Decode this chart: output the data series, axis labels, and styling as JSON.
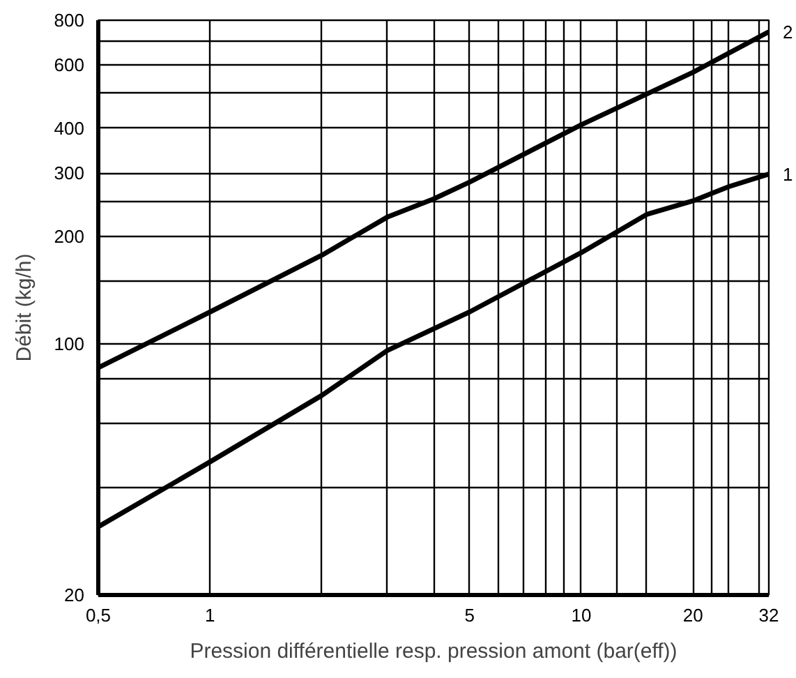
{
  "chart_data": {
    "type": "line",
    "xlabel": "Pression différentielle resp. pression amont (bar(eff))",
    "ylabel": "Débit (kg/h)",
    "log": "xy",
    "grid": true,
    "legend": false,
    "marker": "none",
    "line_style": "solid",
    "xlim": [
      0.5,
      32
    ],
    "ylim": [
      20,
      800
    ],
    "xticks": [
      {
        "value": 0.5,
        "label": "0,5"
      },
      1,
      {
        "value": 2,
        "label": null
      },
      {
        "value": 3,
        "label": null
      },
      {
        "value": 4,
        "label": null
      },
      5,
      {
        "value": 6,
        "label": null
      },
      {
        "value": 7,
        "label": null
      },
      {
        "value": 8,
        "label": null
      },
      {
        "value": 9,
        "label": null
      },
      10,
      {
        "value": 12.5,
        "label": null
      },
      {
        "value": 15,
        "label": null
      },
      20,
      {
        "value": 22.5,
        "label": null
      },
      {
        "value": 25,
        "label": null
      },
      {
        "value": 30,
        "label": null
      },
      32
    ],
    "yticks": [
      20,
      {
        "value": 40,
        "label": null
      },
      {
        "value": 60,
        "label": null
      },
      {
        "value": 80,
        "label": null
      },
      100,
      {
        "value": 150,
        "label": null
      },
      200,
      {
        "value": 250,
        "label": null
      },
      300,
      400,
      {
        "value": 500,
        "label": null
      },
      600,
      {
        "value": 700,
        "label": null
      },
      800
    ],
    "series": [
      {
        "name": "2",
        "color": "#000000",
        "x": [
          0.5,
          1,
          2,
          3,
          4,
          5,
          10,
          20,
          32
        ],
        "values": [
          86,
          123,
          177,
          226,
          254,
          283,
          409,
          573,
          743
        ]
      },
      {
        "name": "1",
        "color": "#000000",
        "x": [
          0.5,
          1,
          2,
          3,
          5,
          10,
          15,
          20,
          25,
          32
        ],
        "values": [
          31,
          47,
          72,
          96,
          123,
          180,
          230,
          251,
          275,
          298
        ]
      }
    ]
  }
}
